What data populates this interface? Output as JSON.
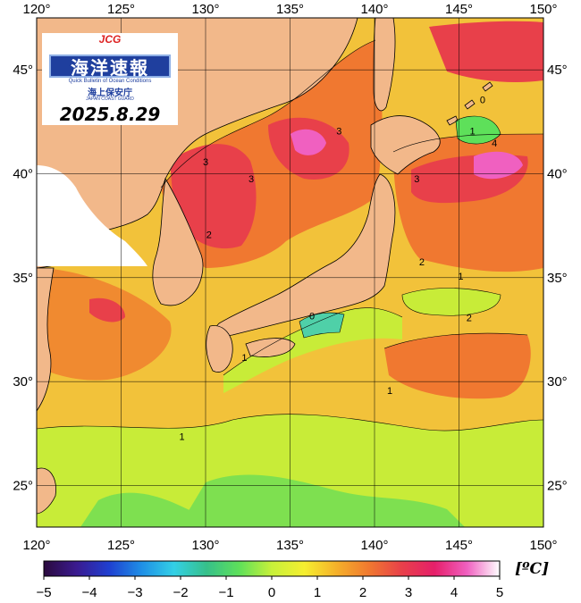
{
  "map": {
    "date": "2025.8.29",
    "logo": {
      "jcg": "JCG",
      "title": "海洋速報",
      "subtitle": "Quick Bulletin of Ocean Conditions",
      "agency": "海上保安庁",
      "agency_en": "JAPAN COAST GUARD"
    },
    "lon_range": [
      120,
      150
    ],
    "lat_range": [
      23,
      47.5
    ],
    "lon_ticks": [
      "120°",
      "125°",
      "130°",
      "135°",
      "140°",
      "145°",
      "150°"
    ],
    "lat_ticks": [
      "45°",
      "40°",
      "35°",
      "30°",
      "25°"
    ],
    "contour_labels": [
      {
        "text": "3",
        "lon": 137.9,
        "lat": 41.9
      },
      {
        "text": "3",
        "lon": 130,
        "lat": 40.4
      },
      {
        "text": "3",
        "lon": 132.7,
        "lat": 39.6
      },
      {
        "text": "3",
        "lon": 142.5,
        "lat": 39.6
      },
      {
        "text": "2",
        "lon": 130.2,
        "lat": 36.9
      },
      {
        "text": "2",
        "lon": 142.8,
        "lat": 35.6
      },
      {
        "text": "2",
        "lon": 145.6,
        "lat": 32.9
      },
      {
        "text": "1",
        "lon": 145.1,
        "lat": 34.9
      },
      {
        "text": "1",
        "lon": 132.3,
        "lat": 31.0
      },
      {
        "text": "1",
        "lon": 140.9,
        "lat": 29.4
      },
      {
        "text": "1",
        "lon": 128.6,
        "lat": 27.2
      },
      {
        "text": "0",
        "lon": 146.4,
        "lat": 43.4
      },
      {
        "text": "0",
        "lon": 136.3,
        "lat": 33.0
      },
      {
        "text": "1",
        "lon": 145.8,
        "lat": 41.9
      },
      {
        "text": "4",
        "lon": 147.1,
        "lat": 41.3
      }
    ]
  },
  "colorbar": {
    "ticks": [
      "−5",
      "−4",
      "−3",
      "−2",
      "−1",
      "0",
      "1",
      "2",
      "3",
      "4",
      "5"
    ],
    "min": -5,
    "max": 5,
    "unit": "[ºC]",
    "colors": [
      "#2b0a3d",
      "#3a1a8f",
      "#1f3fd0",
      "#1f8fe6",
      "#33d0e6",
      "#36c08a",
      "#5ee05a",
      "#c7f03a",
      "#f5ef30",
      "#f5b02a",
      "#f07830",
      "#e8404a",
      "#e61f6a",
      "#f060c0",
      "#ffffff"
    ]
  }
}
